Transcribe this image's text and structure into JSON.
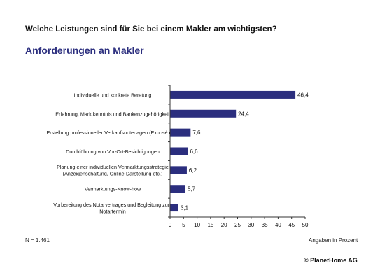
{
  "header": {
    "question": "Welche Leistungen sind für Sie bei einem Makler am wichtigsten?",
    "subtitle": "Anforderungen an Makler"
  },
  "footer": {
    "sample_size": "N = 1.461",
    "unit_note": "Angaben in Prozent",
    "copyright": "© PlanetHome AG"
  },
  "colors": {
    "bar": "#2b2e7e",
    "subtitle": "#2b2e7e"
  },
  "chart_data": {
    "type": "bar",
    "orientation": "horizontal",
    "categories": [
      [
        "Individuelle und konkrete Beratung"
      ],
      [
        "Erfahrung, Marktkenntnis und Bankenzugehörigkeit"
      ],
      [
        "Erstellung professioneller Verkaufsunterlagen (Exposé etc.)"
      ],
      [
        "Durchführung von Vor-Ort-Besichtigungen"
      ],
      [
        "Planung einer individuellen Vermarktungsstrategie",
        "(Anzeigenschaltung, Online-Darstellung etc.)"
      ],
      [
        "Vermarktungs-Know-how"
      ],
      [
        "Vorbereitung des Notarvertrages und Begleitung zum",
        "Notartermin"
      ]
    ],
    "values": [
      46.4,
      24.4,
      7.6,
      6.6,
      6.2,
      5.7,
      3.1
    ],
    "value_labels": [
      "46,4",
      "24,4",
      "7,6",
      "6,6",
      "6,2",
      "5,7",
      "3,1"
    ],
    "xlim": [
      0,
      50
    ],
    "xticks": [
      0,
      5,
      10,
      15,
      20,
      25,
      30,
      35,
      40,
      45,
      50
    ],
    "grid": false,
    "xlabel": "Angaben in Prozent"
  }
}
